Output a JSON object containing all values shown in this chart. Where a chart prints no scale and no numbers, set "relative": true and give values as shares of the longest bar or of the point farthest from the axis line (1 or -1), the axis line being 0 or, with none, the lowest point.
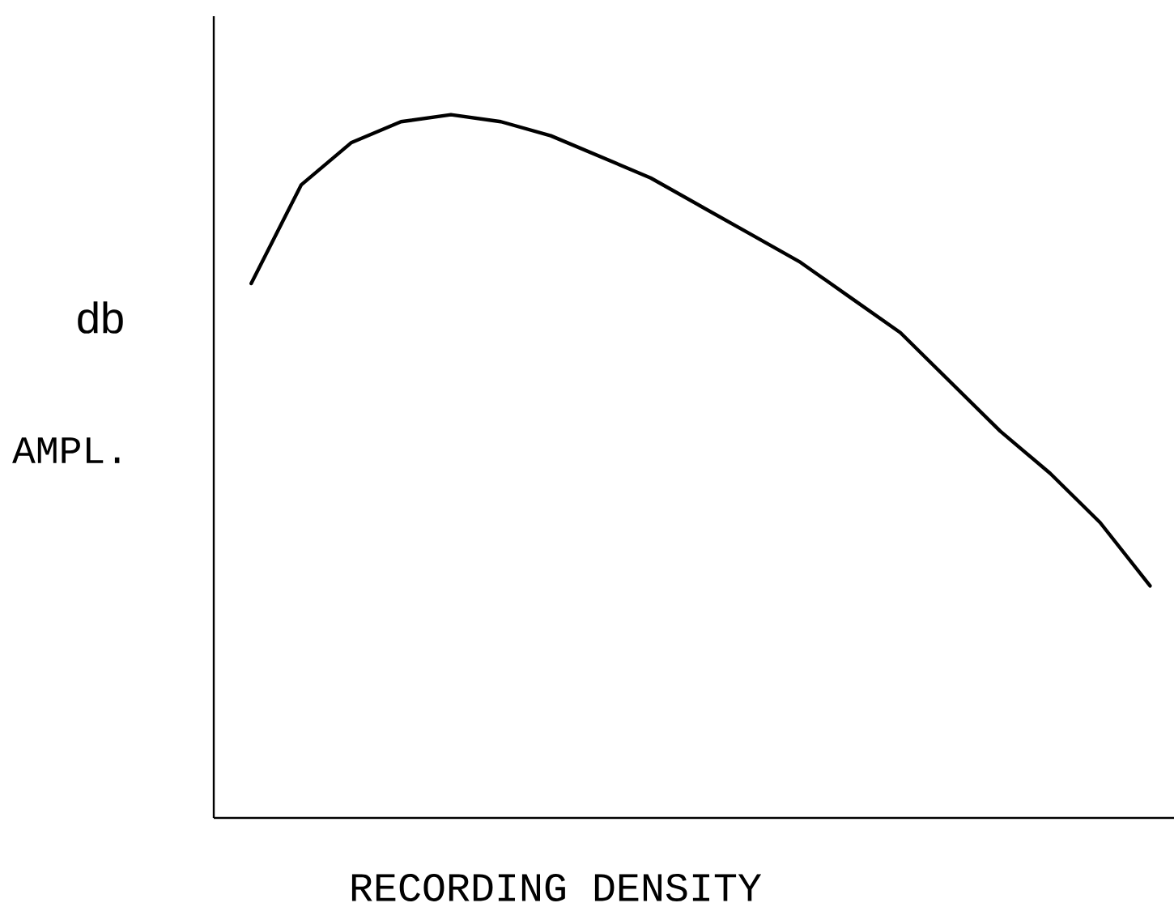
{
  "chart_data": {
    "type": "line",
    "relative": true,
    "xlabel": "RECORDING DENSITY",
    "ylabel": "AMPL.",
    "annotations": [
      "db"
    ],
    "categories": [
      null,
      null,
      null,
      null,
      null,
      null,
      null,
      null,
      null,
      null,
      null,
      null,
      null,
      null,
      null,
      null,
      null,
      null,
      null
    ],
    "series": [
      {
        "color": "#000000",
        "values": [
          0.76,
          0.9,
          0.96,
          0.99,
          1.0,
          0.99,
          0.97,
          0.94,
          0.91,
          0.87,
          0.83,
          0.79,
          0.74,
          0.69,
          0.62,
          0.55,
          0.49,
          0.42,
          0.33
        ]
      }
    ],
    "marker": "none",
    "line_style": "solid"
  }
}
